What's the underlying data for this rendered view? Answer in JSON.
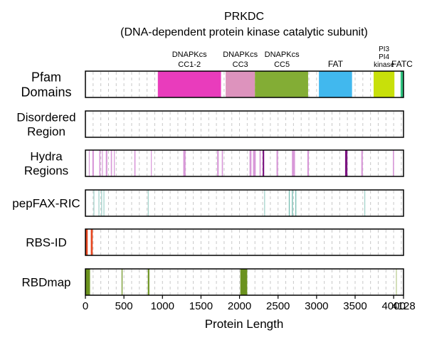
{
  "chart_data": {
    "type": "track",
    "title_line1": "PRKDC",
    "title_line2": "(DNA-dependent protein kinase catalytic subunit)",
    "xlabel": "Protein Length",
    "xlim": [
      0,
      4128
    ],
    "xticks": [
      0,
      500,
      1000,
      1500,
      2000,
      2500,
      3000,
      3500,
      4000,
      4128
    ],
    "xtick_labels": [
      "0",
      "500",
      "1000",
      "1500",
      "2000",
      "2500",
      "3000",
      "3500",
      "4000",
      "4128"
    ],
    "grid": true,
    "colors": {
      "domain_cc12": "#e93cbc",
      "domain_cc3": "#dd93bd",
      "domain_cc5": "#83ad35",
      "domain_fat": "#41b8ee",
      "domain_kinase": "#c8e00a",
      "domain_fatc": "#2ec27e",
      "hydra_light": "#d898d8",
      "hydra_dark": "#7b1380",
      "pepfax": "#6fb9ae",
      "rbsid": "#e6461f",
      "rbdmap": "#6b921e"
    },
    "tracks": [
      {
        "name": "Pfam Domains",
        "label_lines": [
          "Pfam",
          "Domains"
        ],
        "segments": [
          {
            "start": 940,
            "end": 1760,
            "color": "#e93cbc"
          },
          {
            "start": 1820,
            "end": 2200,
            "color": "#dd93bd"
          },
          {
            "start": 2200,
            "end": 2890,
            "color": "#83ad35"
          },
          {
            "start": 3030,
            "end": 3460,
            "color": "#41b8ee"
          },
          {
            "start": 3740,
            "end": 4010,
            "color": "#c8e00a"
          },
          {
            "start": 4090,
            "end": 4128,
            "color": "#2ec27e"
          }
        ],
        "labels": [
          {
            "lines": [
              "DNAPKcs",
              "CC1-2"
            ],
            "pos": 1350
          },
          {
            "lines": [
              "DNAPKcs",
              "CC3"
            ],
            "pos": 2010
          },
          {
            "lines": [
              "DNAPKcs",
              "CC5"
            ],
            "pos": 2550
          },
          {
            "lines": [
              "FAT"
            ],
            "pos": 3245
          },
          {
            "lines": [
              "PI3",
              "PI4",
              "kinase"
            ],
            "pos": 3875
          },
          {
            "lines": [
              "FATC"
            ],
            "pos": 4109
          }
        ]
      },
      {
        "name": "Disordered Region",
        "label_lines": [
          "Disordered",
          "Region"
        ],
        "segments": []
      },
      {
        "name": "Hydra Regions",
        "label_lines": [
          "Hydra",
          "Regions"
        ],
        "segments": [
          {
            "start": 45,
            "end": 55,
            "color": "#d898d8"
          },
          {
            "start": 90,
            "end": 110,
            "color": "#d898d8"
          },
          {
            "start": 180,
            "end": 195,
            "color": "#d898d8"
          },
          {
            "start": 215,
            "end": 225,
            "color": "#d898d8"
          },
          {
            "start": 265,
            "end": 285,
            "color": "#d898d8"
          },
          {
            "start": 330,
            "end": 345,
            "color": "#d898d8"
          },
          {
            "start": 370,
            "end": 380,
            "color": "#d898d8"
          },
          {
            "start": 635,
            "end": 650,
            "color": "#d898d8"
          },
          {
            "start": 850,
            "end": 860,
            "color": "#d898d8"
          },
          {
            "start": 1270,
            "end": 1300,
            "color": "#d898d8"
          },
          {
            "start": 1710,
            "end": 1730,
            "color": "#d898d8"
          },
          {
            "start": 1770,
            "end": 1785,
            "color": "#d898d8"
          },
          {
            "start": 2130,
            "end": 2155,
            "color": "#d898d8"
          },
          {
            "start": 2175,
            "end": 2210,
            "color": "#d898d8"
          },
          {
            "start": 2260,
            "end": 2275,
            "color": "#d898d8"
          },
          {
            "start": 2300,
            "end": 2320,
            "color": "#7b1380"
          },
          {
            "start": 2480,
            "end": 2500,
            "color": "#d898d8"
          },
          {
            "start": 2680,
            "end": 2720,
            "color": "#d898d8"
          },
          {
            "start": 2880,
            "end": 2900,
            "color": "#d898d8"
          },
          {
            "start": 3370,
            "end": 3400,
            "color": "#7b1380"
          },
          {
            "start": 3580,
            "end": 3600,
            "color": "#d898d8"
          },
          {
            "start": 3990,
            "end": 4005,
            "color": "#d898d8"
          }
        ]
      },
      {
        "name": "pepFAX-RIC",
        "label_lines": [
          "pepFAX-RIC"
        ],
        "segments": [
          {
            "start": 105,
            "end": 112,
            "color": "#9fd1c9"
          },
          {
            "start": 170,
            "end": 176,
            "color": "#9fd1c9"
          },
          {
            "start": 205,
            "end": 211,
            "color": "#9fd1c9"
          },
          {
            "start": 235,
            "end": 240,
            "color": "#9fd1c9"
          },
          {
            "start": 810,
            "end": 816,
            "color": "#9fd1c9"
          },
          {
            "start": 2320,
            "end": 2326,
            "color": "#9fd1c9"
          },
          {
            "start": 2640,
            "end": 2650,
            "color": "#6fb9ae"
          },
          {
            "start": 2680,
            "end": 2692,
            "color": "#6fb9ae"
          },
          {
            "start": 2725,
            "end": 2732,
            "color": "#6fb9ae"
          },
          {
            "start": 3620,
            "end": 3626,
            "color": "#9fd1c9"
          }
        ]
      },
      {
        "name": "RBS-ID",
        "label_lines": [
          "RBS-ID"
        ],
        "segments": [
          {
            "start": 0,
            "end": 30,
            "color": "#e6461f"
          },
          {
            "start": 70,
            "end": 95,
            "color": "#e6461f"
          }
        ]
      },
      {
        "name": "RBDmap",
        "label_lines": [
          "RBDmap"
        ],
        "segments": [
          {
            "start": 0,
            "end": 60,
            "color": "#6b921e"
          },
          {
            "start": 470,
            "end": 480,
            "color": "#6b921e"
          },
          {
            "start": 810,
            "end": 830,
            "color": "#6b921e"
          },
          {
            "start": 2010,
            "end": 2100,
            "color": "#6b921e"
          },
          {
            "start": 4030,
            "end": 4038,
            "color": "#b5c98a"
          }
        ]
      }
    ]
  }
}
